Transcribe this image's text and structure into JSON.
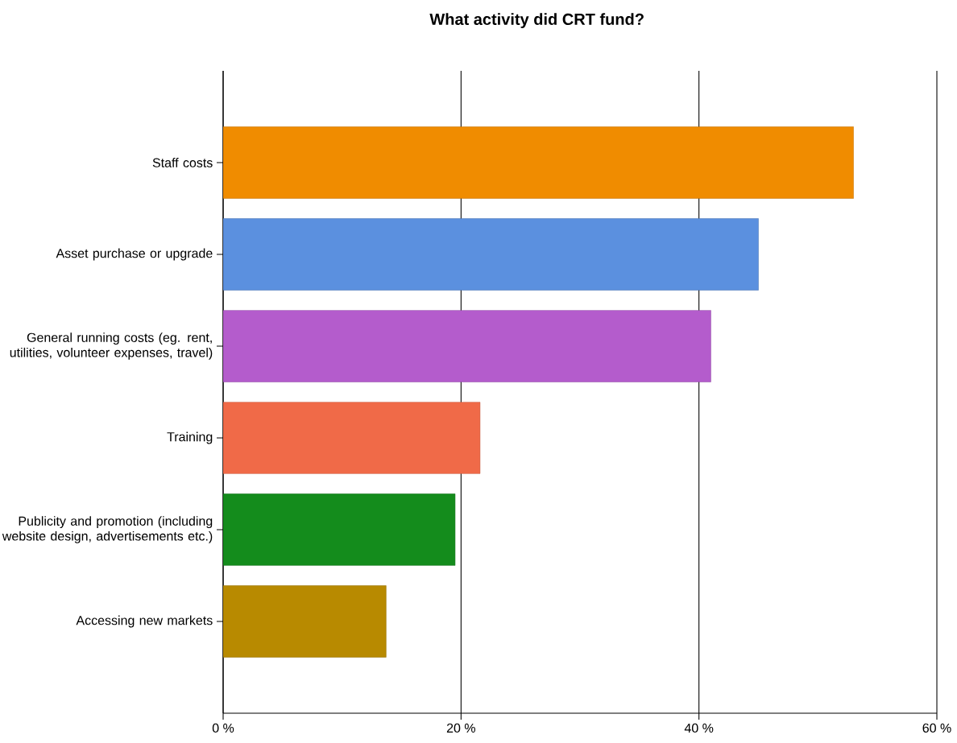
{
  "chart_data": {
    "type": "bar",
    "orientation": "horizontal",
    "title": "What activity did CRT fund?",
    "categories": [
      "Staff costs",
      "Asset purchase or upgrade",
      "General running costs (eg. rent, utilities, volunteer expenses, travel)",
      "Training",
      "Publicity and promotion (including website design, advertisements etc.)",
      "Accessing new markets"
    ],
    "values": [
      53,
      45,
      41,
      21.6,
      19.5,
      13.7
    ],
    "colors": [
      "#f08c00",
      "#5b90df",
      "#b45ccc",
      "#f06a48",
      "#148c1c",
      "#b88a00"
    ],
    "xlim": [
      0,
      60
    ],
    "xticks": [
      {
        "value": 0,
        "label": "0 %"
      },
      {
        "value": 20,
        "label": "20 %"
      },
      {
        "value": 40,
        "label": "40 %"
      },
      {
        "value": 60,
        "label": "60 %"
      }
    ],
    "grid": "x"
  }
}
